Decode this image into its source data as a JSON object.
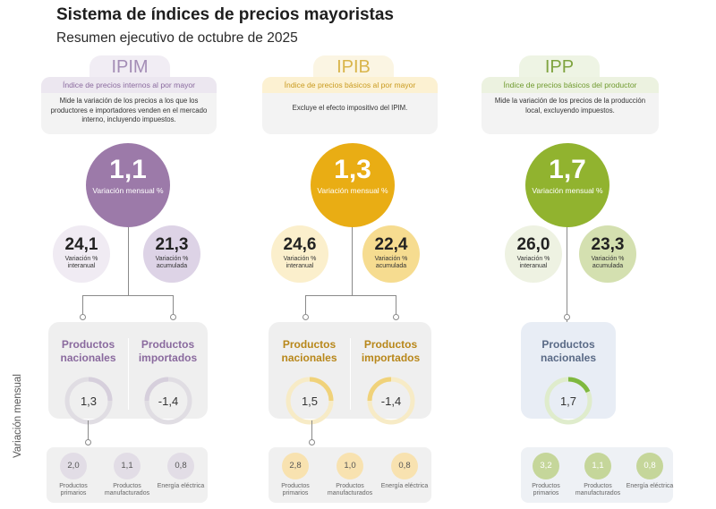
{
  "header": {
    "title": "Sistema de índices de precios mayoristas",
    "subtitle": "Resumen ejecutivo de octubre de 2025"
  },
  "side_label": "Variación mensual",
  "columns": [
    {
      "code": "IPIM",
      "name": "Índice de precios internos al por mayor",
      "description": "Mide la variación de los precios a los que los productores e importadores venden en el mercado interno, incluyendo impuestos.",
      "monthly": {
        "value": "1,1",
        "label": "Variación mensual %"
      },
      "interanual": {
        "value": "24,1",
        "label": "Variación % interanual"
      },
      "acumulada": {
        "value": "21,3",
        "label": "Variación % acumulada"
      },
      "products": [
        {
          "name": "Productos nacionales",
          "value": "1,3"
        },
        {
          "name": "Productos importados",
          "value": "-1,4"
        }
      ],
      "categories": [
        {
          "value": "2,0",
          "label": "Productos primarios"
        },
        {
          "value": "1,1",
          "label": "Productos manufacturados"
        },
        {
          "value": "0,8",
          "label": "Energía eléctrica"
        }
      ],
      "colors": {
        "accent": "#9c7aa9"
      }
    },
    {
      "code": "IPIB",
      "name": "Índice de precios básicos al por mayor",
      "description": "Excluye el efecto impositivo del IPIM.",
      "monthly": {
        "value": "1,3",
        "label": "Variación mensual %"
      },
      "interanual": {
        "value": "24,6",
        "label": "Variación % interanual"
      },
      "acumulada": {
        "value": "22,4",
        "label": "Variación % acumulada"
      },
      "products": [
        {
          "name": "Productos nacionales",
          "value": "1,5"
        },
        {
          "name": "Productos importados",
          "value": "-1,4"
        }
      ],
      "categories": [
        {
          "value": "2,8",
          "label": "Productos primarios"
        },
        {
          "value": "1,0",
          "label": "Productos manufacturados"
        },
        {
          "value": "0,8",
          "label": "Energía eléctrica"
        }
      ],
      "colors": {
        "accent": "#e9ad14"
      }
    },
    {
      "code": "IPP",
      "name": "Índice de precios básicos del productor",
      "description": "Mide la variación de los precios de la producción local, excluyendo impuestos.",
      "monthly": {
        "value": "1,7",
        "label": "Variación mensual %"
      },
      "interanual": {
        "value": "26,0",
        "label": "Variación % interanual"
      },
      "acumulada": {
        "value": "23,3",
        "label": "Variación % acumulada"
      },
      "products": [
        {
          "name": "Productos nacionales",
          "value": "1,7"
        }
      ],
      "categories": [
        {
          "value": "3,2",
          "label": "Productos primarios"
        },
        {
          "value": "1,1",
          "label": "Productos manufacturados"
        },
        {
          "value": "0,8",
          "label": "Energía eléctrica"
        }
      ],
      "colors": {
        "accent": "#91b32f"
      }
    }
  ]
}
